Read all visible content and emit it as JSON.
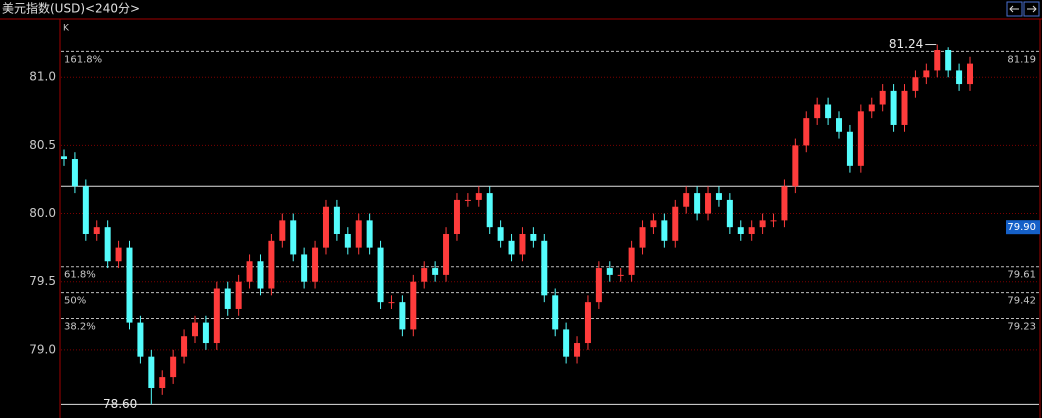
{
  "chart_data": {
    "type": "candlestick",
    "title": "美元指数(USD)<240分>",
    "indicator": "K",
    "ylim": [
      78.5,
      81.42
    ],
    "yticks": [
      {
        "value": 79,
        "label": "79.0"
      },
      {
        "value": 79.5,
        "label": "79.5"
      },
      {
        "value": 80,
        "label": "80.0"
      },
      {
        "value": 80.5,
        "label": "80.5"
      },
      {
        "value": 81,
        "label": "81.0"
      }
    ],
    "grid": true,
    "up_color": "#ff3c3c",
    "down_color": "#54fcfc",
    "open": [
      80.42,
      80.4,
      80.2,
      79.85,
      79.9,
      79.65,
      79.75,
      79.2,
      78.95,
      78.72,
      78.8,
      78.95,
      79.1,
      79.2,
      79.05,
      79.45,
      79.3,
      79.5,
      79.65,
      79.45,
      79.8,
      79.95,
      79.7,
      79.5,
      79.75,
      80.05,
      79.85,
      79.75,
      79.95,
      79.75,
      79.35,
      79.35,
      79.15,
      79.5,
      79.6,
      79.55,
      79.85,
      80.1,
      80.1,
      80.15,
      79.9,
      79.8,
      79.7,
      79.85,
      79.8,
      79.4,
      79.15,
      78.95,
      79.05,
      79.35,
      79.6,
      79.55,
      79.55,
      79.75,
      79.9,
      79.95,
      79.8,
      80.05,
      80.15,
      80.0,
      80.15,
      80.1,
      79.9,
      79.85,
      79.9,
      79.95,
      79.95,
      80.2,
      80.5,
      80.7,
      80.8,
      80.7,
      80.6,
      80.35,
      80.75,
      80.8,
      80.9,
      80.65,
      80.9,
      81.0,
      81.05,
      81.2,
      81.05,
      80.95
    ],
    "high": [
      80.47,
      80.45,
      80.25,
      79.95,
      79.95,
      79.8,
      79.8,
      79.25,
      79.0,
      78.85,
      79.0,
      79.15,
      79.25,
      79.25,
      79.5,
      79.5,
      79.55,
      79.7,
      79.7,
      79.85,
      80.0,
      80.0,
      79.75,
      79.8,
      80.1,
      80.1,
      79.9,
      80.0,
      80.0,
      79.8,
      79.4,
      79.4,
      79.55,
      79.65,
      79.65,
      79.9,
      80.15,
      80.15,
      80.2,
      80.2,
      79.95,
      79.85,
      79.9,
      79.9,
      79.85,
      79.45,
      79.2,
      79.1,
      79.4,
      79.65,
      79.65,
      79.6,
      79.8,
      79.95,
      80.0,
      80.0,
      80.1,
      80.2,
      80.2,
      80.2,
      80.2,
      80.15,
      79.95,
      79.95,
      80.0,
      80.0,
      80.25,
      80.55,
      80.75,
      80.85,
      80.85,
      80.75,
      80.65,
      80.8,
      80.85,
      80.95,
      80.95,
      80.95,
      81.05,
      81.1,
      81.24,
      81.22,
      81.1,
      81.15
    ],
    "low": [
      80.35,
      80.15,
      79.8,
      79.8,
      79.6,
      79.6,
      79.15,
      78.9,
      78.6,
      78.67,
      78.75,
      78.9,
      79.05,
      79.0,
      79.0,
      79.25,
      79.25,
      79.45,
      79.4,
      79.4,
      79.75,
      79.65,
      79.45,
      79.45,
      79.7,
      79.8,
      79.7,
      79.7,
      79.7,
      79.3,
      79.3,
      79.1,
      79.1,
      79.45,
      79.5,
      79.5,
      79.8,
      80.05,
      80.05,
      79.85,
      79.75,
      79.65,
      79.65,
      79.75,
      79.35,
      79.1,
      78.9,
      78.9,
      79.0,
      79.3,
      79.5,
      79.5,
      79.5,
      79.7,
      79.85,
      79.75,
      79.75,
      80.0,
      79.95,
      79.95,
      80.05,
      79.85,
      79.8,
      79.8,
      79.85,
      79.9,
      79.9,
      80.15,
      80.45,
      80.65,
      80.65,
      80.55,
      80.3,
      80.3,
      80.7,
      80.75,
      80.6,
      80.6,
      80.85,
      80.95,
      81.0,
      81.0,
      80.9,
      80.9
    ],
    "close": [
      80.4,
      80.2,
      79.85,
      79.9,
      79.65,
      79.75,
      79.2,
      78.95,
      78.72,
      78.8,
      78.95,
      79.1,
      79.2,
      79.05,
      79.45,
      79.3,
      79.5,
      79.65,
      79.45,
      79.8,
      79.95,
      79.7,
      79.5,
      79.75,
      80.05,
      79.85,
      79.75,
      79.95,
      79.75,
      79.35,
      79.35,
      79.15,
      79.5,
      79.6,
      79.55,
      79.85,
      80.1,
      80.1,
      80.15,
      79.9,
      79.8,
      79.7,
      79.85,
      79.8,
      79.4,
      79.15,
      78.95,
      79.05,
      79.35,
      79.6,
      79.55,
      79.55,
      79.75,
      79.9,
      79.95,
      79.8,
      80.05,
      80.15,
      80.0,
      80.15,
      80.1,
      79.9,
      79.85,
      79.9,
      79.95,
      79.95,
      80.2,
      80.5,
      80.7,
      80.8,
      80.7,
      80.6,
      80.35,
      80.75,
      80.8,
      80.9,
      80.65,
      80.9,
      81.0,
      81.05,
      81.2,
      81.05,
      80.95,
      81.1
    ],
    "fib_levels": [
      {
        "label": "161.8%",
        "value": 81.19
      },
      {
        "label": "61.8%",
        "value": 79.61
      },
      {
        "label": "50%",
        "value": 79.42
      },
      {
        "label": "38.2%",
        "value": 79.23
      }
    ],
    "reference_lines": [
      80.2,
      78.6
    ],
    "annotations": [
      {
        "value": 81.24,
        "label": "81.24",
        "index": 80
      },
      {
        "value": 78.6,
        "label": "78.60",
        "index": 8
      }
    ],
    "marker": {
      "value": 79.9,
      "label": "79.90"
    }
  }
}
